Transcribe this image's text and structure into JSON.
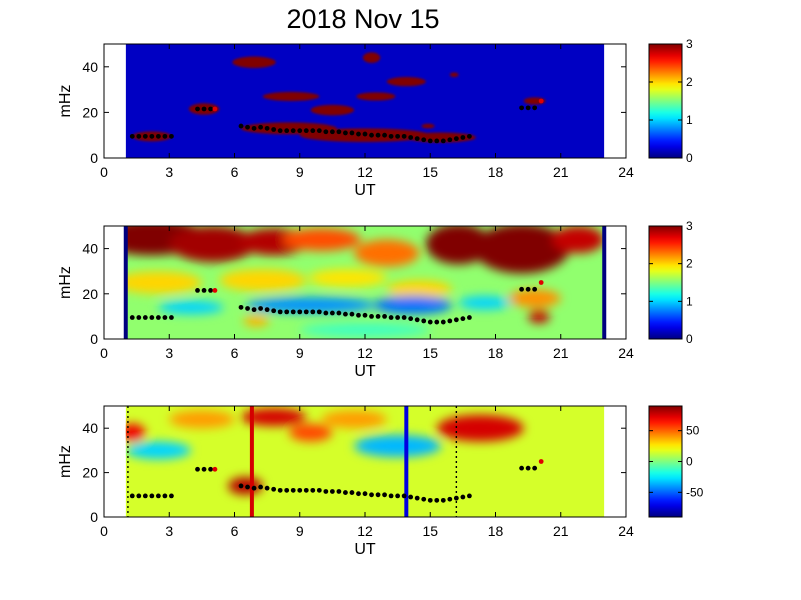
{
  "figure": {
    "title": "2018 Nov 15"
  },
  "chart_data": [
    {
      "type": "heatmap",
      "panel": "top",
      "xlabel": "UT",
      "ylabel": "mHz",
      "xlim": [
        0,
        24
      ],
      "ylim": [
        0,
        50
      ],
      "xticks": [
        0,
        3,
        6,
        9,
        12,
        15,
        18,
        21,
        24
      ],
      "yticks": [
        0,
        20,
        40
      ],
      "data_x_range": [
        1,
        23
      ],
      "colorbar": {
        "min": 0,
        "max": 3,
        "ticks": [
          0,
          1,
          2,
          3
        ]
      },
      "background_value": 0.2,
      "blobs": [
        {
          "x": 2.2,
          "y": 9.5,
          "w": 0.9,
          "h": 2.2,
          "value": 3
        },
        {
          "x": 4.6,
          "y": 21.5,
          "w": 0.7,
          "h": 2.5,
          "value": 3
        },
        {
          "x": 6.9,
          "y": 42,
          "w": 1.0,
          "h": 2.5,
          "value": 3
        },
        {
          "x": 8.6,
          "y": 27,
          "w": 1.3,
          "h": 2,
          "value": 3
        },
        {
          "x": 10.5,
          "y": 21,
          "w": 1.0,
          "h": 2.3,
          "value": 3
        },
        {
          "x": 12.3,
          "y": 44,
          "w": 0.4,
          "h": 2.3,
          "value": 3
        },
        {
          "x": 12.5,
          "y": 27,
          "w": 0.9,
          "h": 1.8,
          "value": 3
        },
        {
          "x": 13.9,
          "y": 33.5,
          "w": 0.9,
          "h": 2,
          "value": 3
        },
        {
          "x": 16.1,
          "y": 36.5,
          "w": 0.2,
          "h": 1,
          "value": 3
        },
        {
          "x": 19.8,
          "y": 25,
          "w": 0.5,
          "h": 1.6,
          "value": 3
        },
        {
          "x": 14.9,
          "y": 14,
          "w": 0.3,
          "h": 1,
          "value": 3
        },
        {
          "x": 8.5,
          "y": 13,
          "w": 2.2,
          "h": 2.6,
          "value": 3
        },
        {
          "x": 12.0,
          "y": 10,
          "w": 3.0,
          "h": 3.0,
          "value": 3
        },
        {
          "x": 15.5,
          "y": 9,
          "w": 1.6,
          "h": 2.2,
          "value": 3
        }
      ],
      "series": [
        {
          "x": [
            1.3,
            1.6,
            1.9,
            2.2,
            2.5,
            2.8,
            3.1,
            4.3,
            4.6,
            4.9,
            5.1,
            6.3,
            6.6,
            6.9,
            7.2,
            7.5,
            7.8,
            8.1,
            8.4,
            8.7,
            9.0,
            9.3,
            9.6,
            9.9,
            10.2,
            10.5,
            10.8,
            11.1,
            11.4,
            11.7,
            12.0,
            12.3,
            12.6,
            12.9,
            13.2,
            13.5,
            13.8,
            14.1,
            14.4,
            14.7,
            15.0,
            15.3,
            15.6,
            15.9,
            16.2,
            16.5,
            16.8,
            19.2,
            19.5,
            19.8,
            20.1
          ],
          "y": [
            9.5,
            9.5,
            9.5,
            9.5,
            9.5,
            9.5,
            9.5,
            21.5,
            21.5,
            21.5,
            21.5,
            14,
            13.5,
            13,
            13.5,
            13,
            12.5,
            12,
            12,
            12,
            12,
            12,
            12,
            12,
            11.5,
            11.5,
            11.5,
            11,
            11,
            10.5,
            10.5,
            10,
            10,
            10,
            9.5,
            9.5,
            9.5,
            9,
            8.5,
            8,
            7.5,
            7.5,
            7.5,
            8,
            8.5,
            9,
            9.5,
            22,
            22,
            22,
            25
          ]
        }
      ],
      "vertical_lines": []
    },
    {
      "type": "heatmap",
      "panel": "middle",
      "xlabel": "UT",
      "ylabel": "mHz",
      "xlim": [
        0,
        24
      ],
      "ylim": [
        0,
        50
      ],
      "xticks": [
        0,
        3,
        6,
        9,
        12,
        15,
        18,
        21,
        24
      ],
      "yticks": [
        0,
        20,
        40
      ],
      "data_x_range": [
        1,
        23
      ],
      "colorbar": {
        "min": 0,
        "max": 3,
        "ticks": [
          0,
          1,
          2,
          3
        ]
      },
      "background_value": 1.55,
      "blobs": [
        {
          "x": 2.2,
          "y": 45,
          "w": 2.5,
          "h": 8,
          "value": 3
        },
        {
          "x": 5.0,
          "y": 42,
          "w": 2.0,
          "h": 8,
          "value": 2.9
        },
        {
          "x": 7.8,
          "y": 43,
          "w": 1.6,
          "h": 6,
          "value": 2.85
        },
        {
          "x": 10.0,
          "y": 44,
          "w": 1.8,
          "h": 5,
          "value": 2.4
        },
        {
          "x": 13.0,
          "y": 38,
          "w": 1.5,
          "h": 6,
          "value": 2.3
        },
        {
          "x": 16.3,
          "y": 42,
          "w": 1.5,
          "h": 9,
          "value": 3
        },
        {
          "x": 19.2,
          "y": 40,
          "w": 2.2,
          "h": 11,
          "value": 3
        },
        {
          "x": 21.8,
          "y": 44,
          "w": 1.2,
          "h": 6,
          "value": 2.8
        },
        {
          "x": 2.5,
          "y": 25,
          "w": 2.0,
          "h": 5,
          "value": 2.0
        },
        {
          "x": 7.3,
          "y": 26,
          "w": 2.0,
          "h": 5,
          "value": 2.0
        },
        {
          "x": 11.2,
          "y": 27,
          "w": 1.8,
          "h": 4,
          "value": 1.95
        },
        {
          "x": 14.5,
          "y": 22,
          "w": 1.5,
          "h": 4,
          "value": 2.0
        },
        {
          "x": 19.8,
          "y": 18,
          "w": 1.2,
          "h": 4,
          "value": 2.2
        },
        {
          "x": 20.0,
          "y": 10,
          "w": 0.5,
          "h": 3,
          "value": 2.8
        },
        {
          "x": 9.5,
          "y": 15,
          "w": 3.0,
          "h": 3.5,
          "value": 0.8
        },
        {
          "x": 14.2,
          "y": 15,
          "w": 1.8,
          "h": 4,
          "value": 0.7
        },
        {
          "x": 4.0,
          "y": 14,
          "w": 1.5,
          "h": 3,
          "value": 1.0
        },
        {
          "x": 17.5,
          "y": 16,
          "w": 1.2,
          "h": 3,
          "value": 1.0
        },
        {
          "x": 7.0,
          "y": 8,
          "w": 0.6,
          "h": 2.5,
          "value": 2.1
        },
        {
          "x": 12.0,
          "y": 4,
          "w": 3.0,
          "h": 3,
          "value": 1.3
        }
      ],
      "series": [
        {
          "x": [
            1.3,
            1.6,
            1.9,
            2.2,
            2.5,
            2.8,
            3.1,
            4.3,
            4.6,
            4.9,
            5.1,
            6.3,
            6.6,
            6.9,
            7.2,
            7.5,
            7.8,
            8.1,
            8.4,
            8.7,
            9.0,
            9.3,
            9.6,
            9.9,
            10.2,
            10.5,
            10.8,
            11.1,
            11.4,
            11.7,
            12.0,
            12.3,
            12.6,
            12.9,
            13.2,
            13.5,
            13.8,
            14.1,
            14.4,
            14.7,
            15.0,
            15.3,
            15.6,
            15.9,
            16.2,
            16.5,
            16.8,
            19.2,
            19.5,
            19.8,
            20.1
          ],
          "y": [
            9.5,
            9.5,
            9.5,
            9.5,
            9.5,
            9.5,
            9.5,
            21.5,
            21.5,
            21.5,
            21.5,
            14,
            13.5,
            13,
            13.5,
            13,
            12.5,
            12,
            12,
            12,
            12,
            12,
            12,
            12,
            11.5,
            11.5,
            11.5,
            11,
            11,
            10.5,
            10.5,
            10,
            10,
            10,
            9.5,
            9.5,
            9.5,
            9,
            8.5,
            8,
            7.5,
            7.5,
            7.5,
            8,
            8.5,
            9,
            9.5,
            22,
            22,
            22,
            25
          ]
        }
      ],
      "vertical_lines": [
        {
          "x": 1.0,
          "color": "#00007f"
        },
        {
          "x": 23.0,
          "color": "#00007f"
        }
      ]
    },
    {
      "type": "heatmap",
      "panel": "bottom",
      "xlabel": "UT",
      "ylabel": "mHz",
      "xlim": [
        0,
        24
      ],
      "ylim": [
        0,
        50
      ],
      "xticks": [
        0,
        3,
        6,
        9,
        12,
        15,
        18,
        21,
        24
      ],
      "yticks": [
        0,
        20,
        40
      ],
      "data_x_range": [
        1,
        23
      ],
      "colorbar": {
        "min": -90,
        "max": 90,
        "ticks": [
          50,
          0,
          -50
        ]
      },
      "background_value": 15,
      "blobs": [
        {
          "x": 1.3,
          "y": 38,
          "w": 0.6,
          "h": 4,
          "value": 70
        },
        {
          "x": 7.8,
          "y": 45,
          "w": 1.5,
          "h": 4,
          "value": 75
        },
        {
          "x": 9.5,
          "y": 38,
          "w": 1.0,
          "h": 4,
          "value": 55
        },
        {
          "x": 17.3,
          "y": 40,
          "w": 2.0,
          "h": 6,
          "value": 75
        },
        {
          "x": 6.5,
          "y": 14,
          "w": 0.8,
          "h": 4,
          "value": 80
        },
        {
          "x": 2.5,
          "y": 30,
          "w": 1.5,
          "h": 4,
          "value": -30
        },
        {
          "x": 13.5,
          "y": 32,
          "w": 2.0,
          "h": 5,
          "value": -35
        },
        {
          "x": 4.5,
          "y": 44,
          "w": 1.5,
          "h": 4,
          "value": 40
        },
        {
          "x": 11.5,
          "y": 44,
          "w": 1.5,
          "h": 4,
          "value": 40
        }
      ],
      "series": [
        {
          "x": [
            1.3,
            1.6,
            1.9,
            2.2,
            2.5,
            2.8,
            3.1,
            4.3,
            4.6,
            4.9,
            5.1,
            6.3,
            6.6,
            6.9,
            7.2,
            7.5,
            7.8,
            8.1,
            8.4,
            8.7,
            9.0,
            9.3,
            9.6,
            9.9,
            10.2,
            10.5,
            10.8,
            11.1,
            11.4,
            11.7,
            12.0,
            12.3,
            12.6,
            12.9,
            13.2,
            13.5,
            13.8,
            14.1,
            14.4,
            14.7,
            15.0,
            15.3,
            15.6,
            15.9,
            16.2,
            16.5,
            16.8,
            19.2,
            19.5,
            19.8,
            20.1
          ],
          "y": [
            9.5,
            9.5,
            9.5,
            9.5,
            9.5,
            9.5,
            9.5,
            21.5,
            21.5,
            21.5,
            21.5,
            14,
            13.5,
            13,
            13.5,
            13,
            12.5,
            12,
            12,
            12,
            12,
            12,
            12,
            12,
            11.5,
            11.5,
            11.5,
            11,
            11,
            10.5,
            10.5,
            10,
            10,
            10,
            9.5,
            9.5,
            9.5,
            9,
            8.5,
            8,
            7.5,
            7.5,
            7.5,
            8,
            8.5,
            9,
            9.5,
            22,
            22,
            22,
            25
          ]
        }
      ],
      "vertical_lines": [
        {
          "x": 6.8,
          "color": "#d40000"
        },
        {
          "x": 13.9,
          "color": "#0000e0"
        }
      ],
      "dotted_lines": [
        1.1,
        16.2
      ]
    }
  ]
}
